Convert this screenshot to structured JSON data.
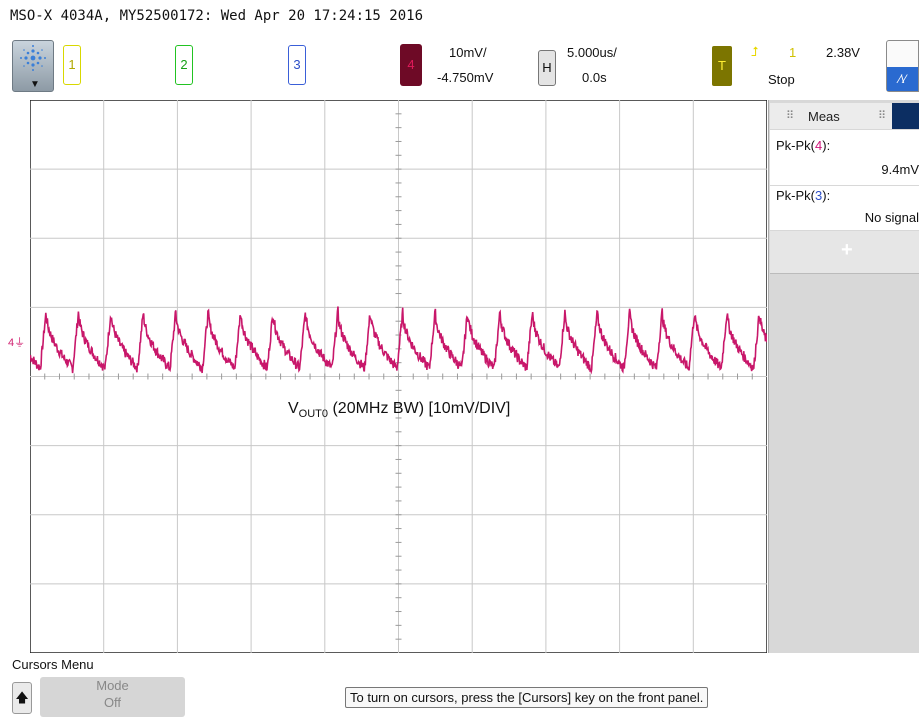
{
  "title": "MSO-X 4034A, MY52500172: Wed Apr 20 17:24:15 2016",
  "channels": {
    "ch1_label": "1",
    "ch2_label": "2",
    "ch3_label": "3",
    "ch4_label": "4",
    "ch4_scale": "10mV/",
    "ch4_offset": "-4.750mV"
  },
  "horizontal": {
    "label": "H",
    "scale": "5.000us/",
    "delay": "0.0s"
  },
  "trigger": {
    "label": "T",
    "source": "1",
    "level": "2.38V",
    "status": "Stop"
  },
  "acquire": {
    "symbol": "⩘⩗"
  },
  "measurements": {
    "header": "Meas",
    "m1_label_prefix": "Pk-Pk(",
    "m1_channel": "4",
    "m1_label_suffix": "):",
    "m1_value": "9.4mV",
    "m2_label_prefix": "Pk-Pk(",
    "m2_channel": "3",
    "m2_label_suffix": "):",
    "m2_value": "No signal",
    "add": "+"
  },
  "annotation": {
    "v": "V",
    "sub": "OUT0",
    "rest": " (20MHz BW) [10mV/DIV]"
  },
  "ground_marker": "4",
  "softkeys": {
    "menu_title": "Cursors Menu",
    "up_arrow": "🡅",
    "mode_label": "Mode",
    "mode_value": "Off",
    "hint": "To turn on cursors, press the [Cursors] key on the front panel."
  },
  "colors": {
    "ch1": "#d8d800",
    "ch2": "#22c322",
    "ch3": "#3a5fd8",
    "ch4": "#c8176a",
    "grid": "#c8c8c8"
  },
  "chart_data": {
    "type": "line",
    "title": "",
    "xlabel": "",
    "ylabel": "",
    "x_divisions": 10,
    "y_divisions": 8,
    "x_per_div_us": 5,
    "xlim_us": [
      -25,
      25
    ],
    "y_per_div_mV": 10,
    "series": [
      {
        "name": "VOUT0",
        "color": "#c8176a",
        "ripple_period_us": 2.2,
        "center_mV": 5.9,
        "pk_pk_mV": 9.4,
        "waveform": "sawtooth-cusp (fast rise, curved decay)"
      }
    ]
  }
}
